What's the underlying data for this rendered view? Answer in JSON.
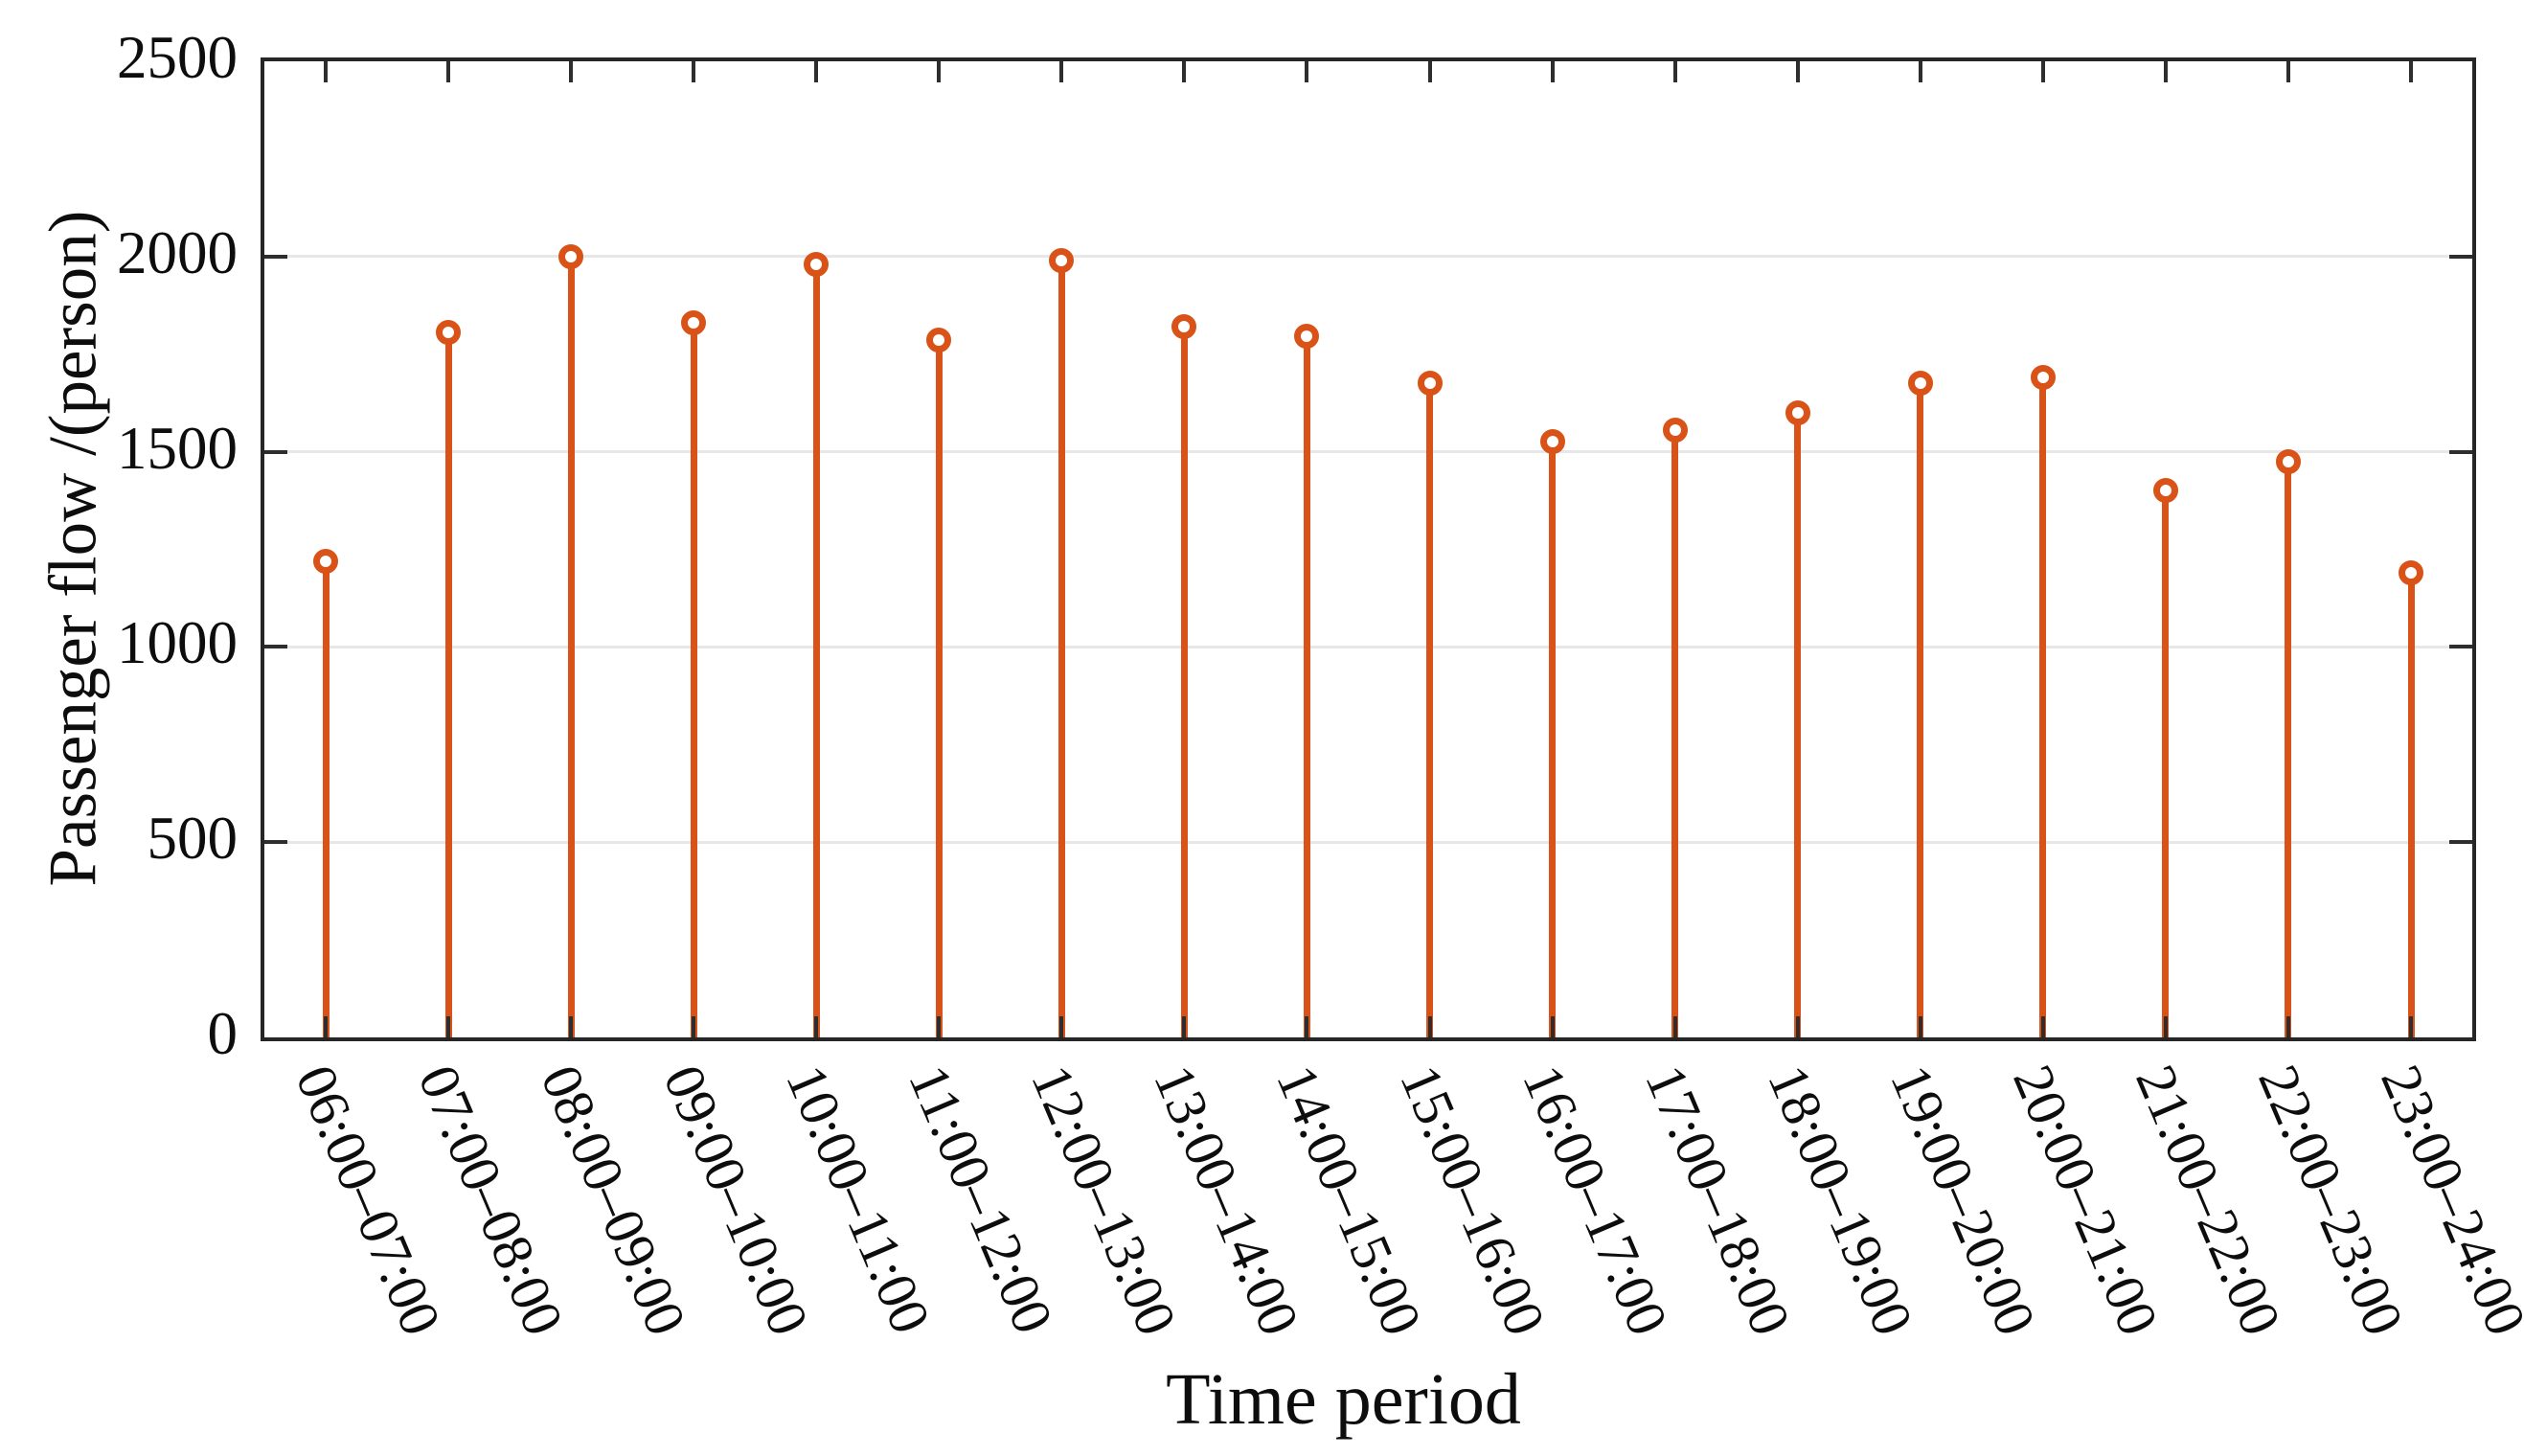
{
  "chart_data": {
    "type": "stem",
    "title": "",
    "xlabel": "Time period",
    "ylabel": "Passenger flow /(person)",
    "categories": [
      "06:00–07:00",
      "07:00–08:00",
      "08:00–09:00",
      "09:00–10:00",
      "10:00–11:00",
      "11:00–12:00",
      "12:00–13:00",
      "13:00–14:00",
      "14:00–15:00",
      "15:00–16:00",
      "16:00–17:00",
      "17:00–18:00",
      "18:00–19:00",
      "19:00–20:00",
      "20:00–21:00",
      "21:00–22:00",
      "22:00–23:00",
      "23:00–24:00"
    ],
    "values": [
      1220,
      1805,
      2000,
      1830,
      1980,
      1785,
      1990,
      1820,
      1795,
      1675,
      1525,
      1555,
      1600,
      1675,
      1690,
      1400,
      1475,
      1190
    ],
    "ylim": [
      0,
      2500
    ],
    "y_ticks": [
      0,
      500,
      1000,
      1500,
      2000,
      2500
    ],
    "grid": "horizontal",
    "legend": "none",
    "marker": "open-circle",
    "colors": {
      "stem": "#d95319",
      "grid": "#e7e7e7",
      "axis": "#262626",
      "text": "#0d0d0d"
    }
  }
}
